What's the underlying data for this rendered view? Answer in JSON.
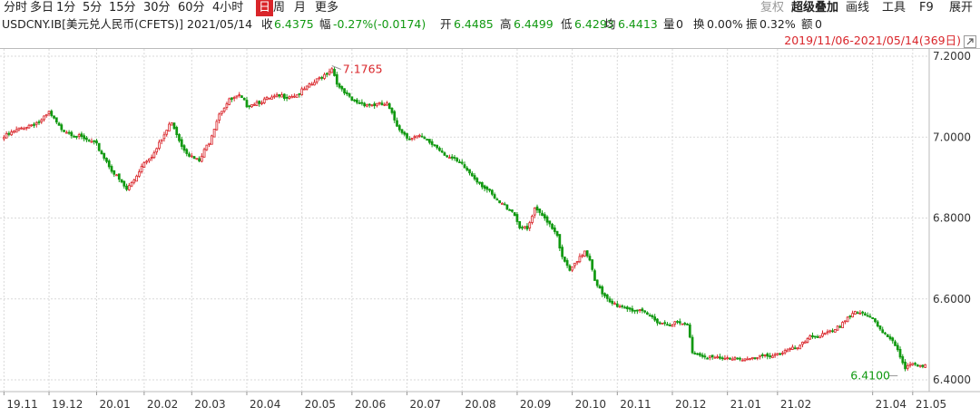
{
  "toolbar": {
    "periods": [
      "分时",
      "多日",
      "1分",
      "5分",
      "15分",
      "30分",
      "60分",
      "4小时",
      "日",
      "周",
      "月",
      "更多"
    ],
    "active_period": "日",
    "right_tools": {
      "fuquan": "复权",
      "overlay": "超级叠加",
      "draw": "画线",
      "tools": "工具",
      "f9": "F9",
      "expand": "展开"
    }
  },
  "info": {
    "symbol": "USDCNY.IB[美元兑人民币(CFETS)]",
    "date": "2021/05/14",
    "close_label": "收",
    "close": "6.4375",
    "change_label": "幅",
    "change": "-0.27%(-0.0174)",
    "open_label": "开",
    "open": "6.4485",
    "high_label": "高",
    "high": "6.4499",
    "low_label": "低",
    "low": "6.4293",
    "avg_label": "均",
    "avg": "6.4413",
    "volume_label": "量",
    "volume": "0",
    "turnover_label": "换",
    "turnover": "0.00%",
    "amplitude_label": "振",
    "amplitude": "0.32%",
    "amount_label": "额",
    "amount": "0"
  },
  "range": {
    "label": "2019/11/06-2021/05/14(369日)"
  },
  "colors": {
    "up": "#d9252a",
    "down": "#119911",
    "grid": "#d9d9d9"
  },
  "chart_data": {
    "type": "candlestick",
    "ylim": [
      6.38,
      7.22
    ],
    "y_ticks": [
      "7.2000",
      "7.0000",
      "6.8000",
      "6.6000",
      "6.4000"
    ],
    "y_tick_values": [
      7.2,
      7.0,
      6.8,
      6.6,
      6.4
    ],
    "x_ticks": [
      "19.11",
      "19.12",
      "20.01",
      "20.02",
      "20.03",
      "20.04",
      "20.05",
      "20.06",
      "20.07",
      "20.08",
      "20.09",
      "20.10",
      "20.11",
      "20.12",
      "21.01",
      "21.02",
      "21.04",
      "21.05"
    ],
    "x_tick_index": [
      0,
      18,
      37,
      56,
      75,
      97,
      119,
      139,
      161,
      183,
      205,
      227,
      245,
      267,
      289,
      309,
      347,
      363
    ],
    "num_bars": 369,
    "max_annotation": {
      "label": "7.1765",
      "value": 7.1765,
      "index": 131
    },
    "min_annotation": {
      "label": "6.4100",
      "value": 6.41,
      "index": 357
    },
    "close_anchors": [
      [
        0,
        7.0
      ],
      [
        8,
        7.025
      ],
      [
        15,
        7.04
      ],
      [
        18,
        7.06
      ],
      [
        22,
        7.025
      ],
      [
        30,
        7.0
      ],
      [
        37,
        6.98
      ],
      [
        44,
        6.91
      ],
      [
        49,
        6.87
      ],
      [
        52,
        6.895
      ],
      [
        56,
        6.94
      ],
      [
        60,
        6.96
      ],
      [
        64,
        7.005
      ],
      [
        67,
        7.04
      ],
      [
        71,
        6.98
      ],
      [
        75,
        6.95
      ],
      [
        78,
        6.94
      ],
      [
        82,
        6.99
      ],
      [
        86,
        7.06
      ],
      [
        90,
        7.09
      ],
      [
        94,
        7.1
      ],
      [
        97,
        7.08
      ],
      [
        103,
        7.09
      ],
      [
        110,
        7.1
      ],
      [
        117,
        7.105
      ],
      [
        123,
        7.13
      ],
      [
        127,
        7.15
      ],
      [
        131,
        7.17
      ],
      [
        134,
        7.12
      ],
      [
        139,
        7.09
      ],
      [
        146,
        7.08
      ],
      [
        153,
        7.08
      ],
      [
        157,
        7.03
      ],
      [
        161,
        7.0
      ],
      [
        166,
        7.0
      ],
      [
        172,
        6.98
      ],
      [
        178,
        6.95
      ],
      [
        183,
        6.93
      ],
      [
        188,
        6.9
      ],
      [
        193,
        6.87
      ],
      [
        197,
        6.84
      ],
      [
        203,
        6.82
      ],
      [
        206,
        6.78
      ],
      [
        209,
        6.77
      ],
      [
        212,
        6.82
      ],
      [
        217,
        6.795
      ],
      [
        221,
        6.76
      ],
      [
        223,
        6.7
      ],
      [
        226,
        6.67
      ],
      [
        229,
        6.69
      ],
      [
        232,
        6.72
      ],
      [
        234,
        6.7
      ],
      [
        236,
        6.65
      ],
      [
        239,
        6.61
      ],
      [
        242,
        6.59
      ],
      [
        248,
        6.58
      ],
      [
        253,
        6.57
      ],
      [
        257,
        6.56
      ],
      [
        263,
        6.54
      ],
      [
        268,
        6.54
      ],
      [
        273,
        6.535
      ],
      [
        275,
        6.47
      ],
      [
        280,
        6.46
      ],
      [
        286,
        6.45
      ],
      [
        292,
        6.455
      ],
      [
        299,
        6.45
      ],
      [
        305,
        6.46
      ],
      [
        312,
        6.47
      ],
      [
        318,
        6.48
      ],
      [
        322,
        6.51
      ],
      [
        327,
        6.51
      ],
      [
        332,
        6.52
      ],
      [
        336,
        6.55
      ],
      [
        340,
        6.57
      ],
      [
        343,
        6.56
      ],
      [
        347,
        6.55
      ],
      [
        351,
        6.52
      ],
      [
        355,
        6.5
      ],
      [
        357,
        6.47
      ],
      [
        360,
        6.425
      ],
      [
        363,
        6.44
      ],
      [
        368,
        6.4375
      ]
    ]
  }
}
